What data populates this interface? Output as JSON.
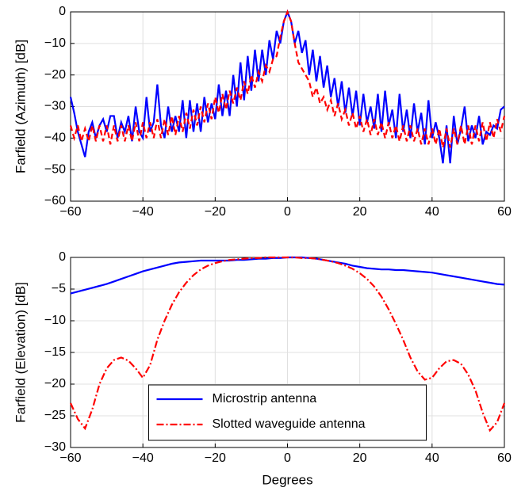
{
  "chart_data": [
    {
      "type": "line",
      "ylabel": "Farfield (Azimuth) [dB]",
      "x": [
        -60,
        -59,
        -58,
        -57,
        -56,
        -55,
        -54,
        -53,
        -52,
        -51,
        -50,
        -49,
        -48,
        -47,
        -46,
        -45,
        -44,
        -43,
        -42,
        -41,
        -40,
        -39,
        -38,
        -37,
        -36,
        -35,
        -34,
        -33,
        -32,
        -31,
        -30,
        -29,
        -28,
        -27,
        -26,
        -25,
        -24,
        -23,
        -22,
        -21,
        -20,
        -19,
        -18,
        -17,
        -16,
        -15,
        -14,
        -13,
        -12,
        -11,
        -10,
        -9,
        -8,
        -7,
        -6,
        -5,
        -4,
        -3,
        -2,
        -1,
        0,
        1,
        2,
        3,
        4,
        5,
        6,
        7,
        8,
        9,
        10,
        11,
        12,
        13,
        14,
        15,
        16,
        17,
        18,
        19,
        20,
        21,
        22,
        23,
        24,
        25,
        26,
        27,
        28,
        29,
        30,
        31,
        32,
        33,
        34,
        35,
        36,
        37,
        38,
        39,
        40,
        41,
        42,
        43,
        44,
        45,
        46,
        47,
        48,
        49,
        50,
        51,
        52,
        53,
        54,
        55,
        56,
        57,
        58,
        59,
        60
      ],
      "series": [
        {
          "color": "#0000ff",
          "linestyle": "-",
          "values": [
            -27,
            -32,
            -38,
            -42,
            -46,
            -38,
            -35,
            -40,
            -36,
            -34,
            -38,
            -33,
            -33,
            -40,
            -35,
            -38,
            -33,
            -41,
            -30,
            -38,
            -40,
            -27,
            -38,
            -35,
            -23,
            -36,
            -40,
            -30,
            -38,
            -33,
            -38,
            -28,
            -40,
            -28,
            -38,
            -29,
            -38,
            -27,
            -35,
            -29,
            -34,
            -23,
            -33,
            -25,
            -33,
            -20,
            -30,
            -16,
            -28,
            -14,
            -25,
            -12,
            -22,
            -12,
            -20,
            -9,
            -15,
            -6,
            -10,
            -3,
            0,
            -3,
            -10,
            -6,
            -13,
            -9,
            -20,
            -12,
            -22,
            -14,
            -24,
            -17,
            -27,
            -21,
            -30,
            -22,
            -32,
            -24,
            -33,
            -25,
            -36,
            -26,
            -35,
            -30,
            -37,
            -26,
            -38,
            -25,
            -36,
            -31,
            -40,
            -26,
            -38,
            -31,
            -40,
            -29,
            -38,
            -32,
            -42,
            -28,
            -40,
            -35,
            -40,
            -48,
            -36,
            -48,
            -33,
            -42,
            -37,
            -30,
            -41,
            -36,
            -40,
            -33,
            -42,
            -38,
            -39,
            -36,
            -37,
            -31,
            -30
          ]
        },
        {
          "color": "#ff0000",
          "linestyle": "--",
          "values": [
            -36,
            -40,
            -36,
            -41,
            -37,
            -41,
            -36,
            -41,
            -36,
            -41,
            -36,
            -42,
            -36,
            -41,
            -36,
            -41,
            -36,
            -41,
            -35,
            -41,
            -35,
            -40,
            -35,
            -40,
            -34,
            -40,
            -34,
            -39,
            -33,
            -39,
            -33,
            -38,
            -32,
            -37,
            -31,
            -36,
            -30,
            -35,
            -29,
            -34,
            -27,
            -32,
            -26,
            -31,
            -25,
            -29,
            -24,
            -28,
            -22,
            -26,
            -20,
            -24,
            -19,
            -22,
            -17,
            -19,
            -15,
            -14,
            -8,
            -3,
            0,
            -3,
            -10,
            -16,
            -18,
            -20,
            -22,
            -27,
            -24,
            -29,
            -27,
            -31,
            -28,
            -33,
            -29,
            -34,
            -31,
            -36,
            -32,
            -37,
            -33,
            -38,
            -34,
            -39,
            -34,
            -39,
            -35,
            -40,
            -35,
            -40,
            -36,
            -41,
            -36,
            -41,
            -36,
            -41,
            -37,
            -42,
            -37,
            -42,
            -37,
            -42,
            -37,
            -43,
            -37,
            -43,
            -37,
            -42,
            -36,
            -42,
            -36,
            -42,
            -36,
            -41,
            -35,
            -41,
            -35,
            -40,
            -34,
            -38,
            -33
          ]
        }
      ],
      "xlim": [
        -60,
        60
      ],
      "xticks": [
        {
          "value": -60,
          "label": "−60"
        },
        {
          "value": -40,
          "label": "−40"
        },
        {
          "value": -20,
          "label": "−20"
        },
        0,
        20,
        40,
        60
      ],
      "ylim": [
        -60,
        0
      ],
      "yticks": [
        {
          "value": -60,
          "label": "−60"
        },
        {
          "value": -50,
          "label": "−50"
        },
        {
          "value": -40,
          "label": "−40"
        },
        {
          "value": -30,
          "label": "−30"
        },
        {
          "value": -20,
          "label": "−20"
        },
        {
          "value": -10,
          "label": "−10"
        },
        0
      ],
      "grid": true
    },
    {
      "type": "line",
      "ylabel": "Farfield (Elevation) [dB]",
      "xlabel": "Degrees",
      "x": [
        -60,
        -58,
        -56,
        -54,
        -52,
        -50,
        -48,
        -46,
        -44,
        -42,
        -40,
        -38,
        -36,
        -34,
        -32,
        -30,
        -28,
        -26,
        -24,
        -22,
        -20,
        -18,
        -16,
        -14,
        -12,
        -10,
        -8,
        -6,
        -4,
        -2,
        0,
        2,
        4,
        6,
        8,
        10,
        12,
        14,
        16,
        18,
        20,
        22,
        24,
        26,
        28,
        30,
        32,
        34,
        36,
        38,
        40,
        42,
        44,
        46,
        48,
        50,
        52,
        54,
        56,
        58,
        60
      ],
      "series": [
        {
          "name": "Microstrip antenna",
          "color": "#0000ff",
          "linestyle": "-",
          "values": [
            -5.7,
            -5.4,
            -5.1,
            -4.8,
            -4.5,
            -4.2,
            -3.8,
            -3.4,
            -3.0,
            -2.6,
            -2.2,
            -1.9,
            -1.6,
            -1.3,
            -1.0,
            -0.8,
            -0.7,
            -0.6,
            -0.5,
            -0.5,
            -0.5,
            -0.5,
            -0.5,
            -0.4,
            -0.4,
            -0.3,
            -0.2,
            -0.2,
            -0.1,
            -0.1,
            0,
            0,
            0,
            -0.1,
            -0.2,
            -0.4,
            -0.6,
            -0.8,
            -1.0,
            -1.3,
            -1.5,
            -1.7,
            -1.8,
            -1.9,
            -1.9,
            -2.0,
            -2.0,
            -2.1,
            -2.2,
            -2.3,
            -2.4,
            -2.6,
            -2.8,
            -3.0,
            -3.2,
            -3.4,
            -3.6,
            -3.8,
            -4.0,
            -4.2,
            -4.3
          ]
        },
        {
          "name": "Slotted waveguide antenna",
          "color": "#ff0000",
          "linestyle": "-.",
          "values": [
            -23,
            -25.5,
            -27,
            -24,
            -20,
            -17.5,
            -16.2,
            -15.8,
            -16.3,
            -17.5,
            -19,
            -17,
            -13,
            -10,
            -7.5,
            -5.5,
            -4,
            -2.8,
            -1.9,
            -1.3,
            -0.9,
            -0.6,
            -0.4,
            -0.3,
            -0.2,
            -0.1,
            -0.1,
            0,
            0,
            0,
            0,
            0,
            -0.1,
            -0.1,
            -0.2,
            -0.4,
            -0.6,
            -0.9,
            -1.3,
            -1.8,
            -2.5,
            -3.4,
            -4.6,
            -6.2,
            -8.2,
            -10.5,
            -13,
            -15.8,
            -18,
            -19.3,
            -19,
            -17.5,
            -16.4,
            -16.2,
            -16.8,
            -18.5,
            -21,
            -24.5,
            -27.3,
            -26,
            -23
          ]
        }
      ],
      "xlim": [
        -60,
        60
      ],
      "xticks": [
        {
          "value": -60,
          "label": "−60"
        },
        {
          "value": -40,
          "label": "−40"
        },
        {
          "value": -20,
          "label": "−20"
        },
        0,
        20,
        40,
        60
      ],
      "ylim": [
        -30,
        0
      ],
      "yticks": [
        {
          "value": -30,
          "label": "−30"
        },
        {
          "value": -25,
          "label": "−25"
        },
        {
          "value": -20,
          "label": "−20"
        },
        {
          "value": -15,
          "label": "−15"
        },
        {
          "value": -10,
          "label": "−10"
        },
        {
          "value": -5,
          "label": "−5"
        },
        0
      ],
      "grid": true,
      "legend": "lower center"
    }
  ]
}
